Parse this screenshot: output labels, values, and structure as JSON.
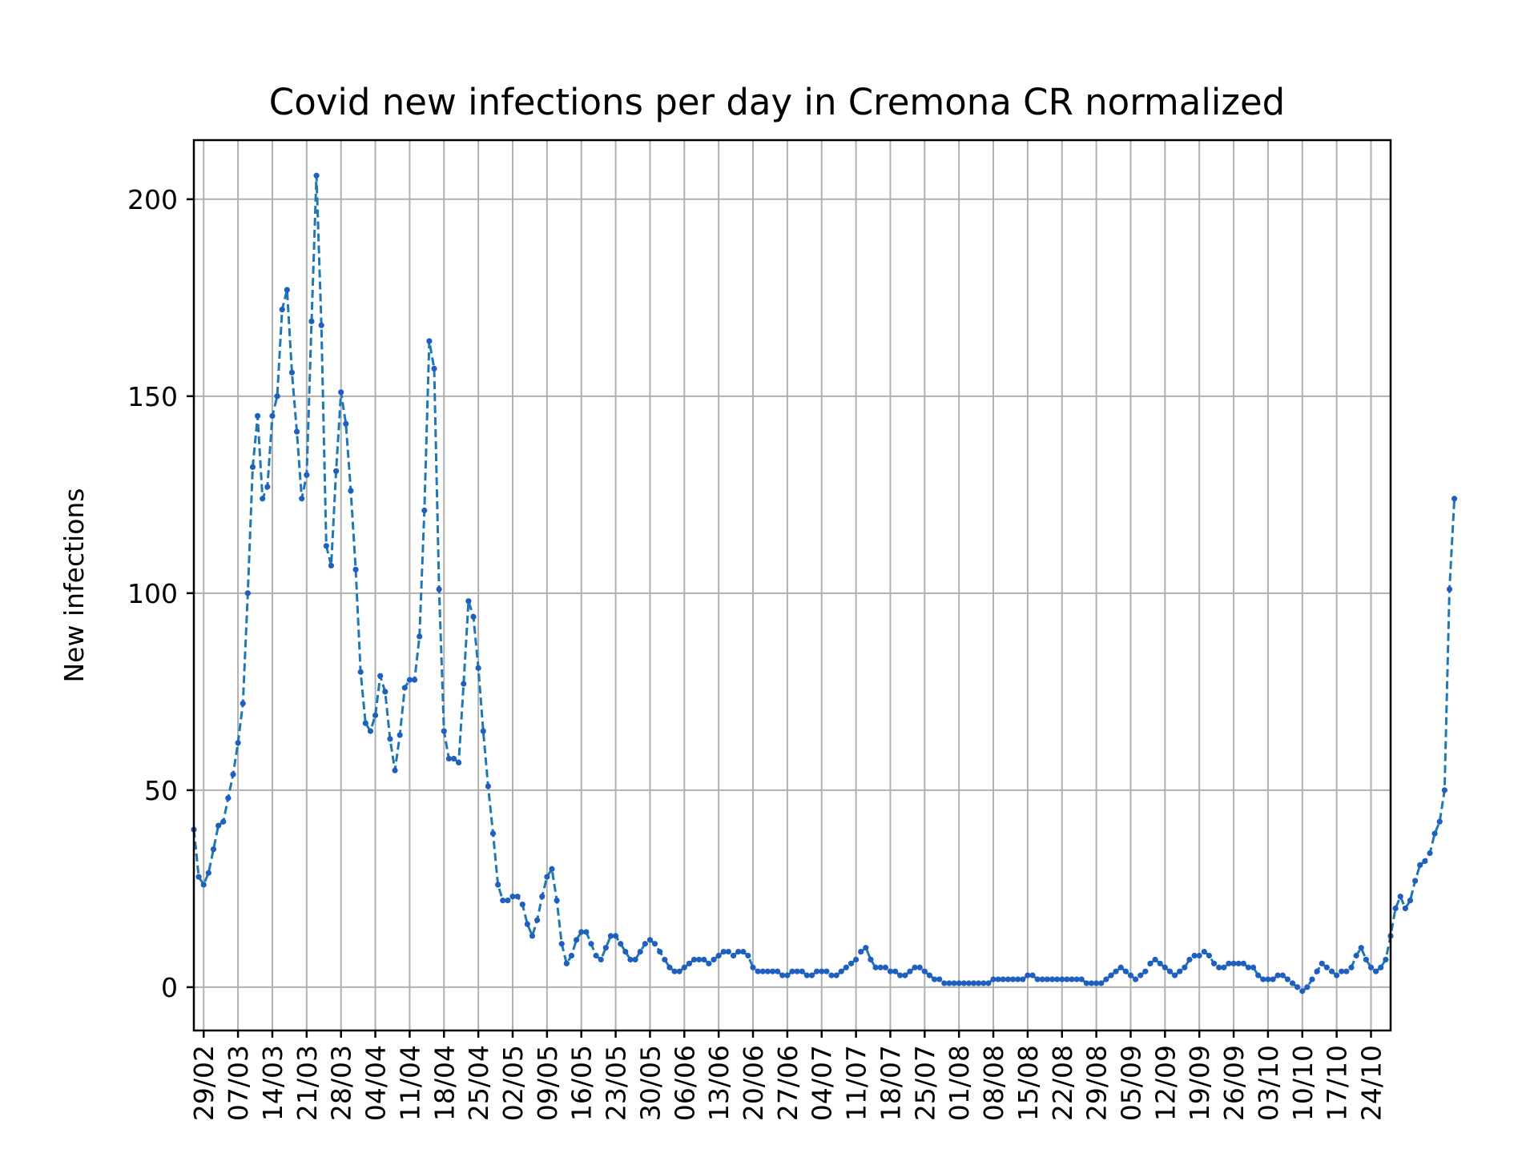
{
  "chart_data": {
    "type": "line",
    "title": "Covid new infections per day in Cremona CR normalized",
    "xlabel": "",
    "ylabel": "New infections",
    "ylim": [
      -11,
      215
    ],
    "x_domain": [
      "2020-02-27",
      "2020-10-28"
    ],
    "y_ticks": [
      0,
      50,
      100,
      150,
      200
    ],
    "x_ticks": [
      "29/02",
      "07/03",
      "14/03",
      "21/03",
      "28/03",
      "04/04",
      "11/04",
      "18/04",
      "25/04",
      "02/05",
      "09/05",
      "16/05",
      "23/05",
      "30/05",
      "06/06",
      "13/06",
      "20/06",
      "27/06",
      "04/07",
      "11/07",
      "18/07",
      "25/07",
      "01/08",
      "08/08",
      "15/08",
      "22/08",
      "29/08",
      "05/09",
      "12/09",
      "19/09",
      "26/09",
      "03/10",
      "10/10",
      "17/10",
      "24/10"
    ],
    "grid": true,
    "line_color": "#1f77b4",
    "marker_color": "#1f5fc0",
    "line_style": "dashed",
    "marker": "dot",
    "series": [
      {
        "start_date": "2020-02-27",
        "values": [
          40,
          28,
          26,
          29,
          35,
          41,
          42,
          48,
          54,
          62,
          72,
          100,
          132,
          145,
          124,
          127,
          145,
          150,
          172,
          177,
          156,
          141,
          124,
          130,
          169,
          206,
          168,
          112,
          107,
          131,
          151,
          143,
          126,
          106,
          80,
          67,
          65,
          69,
          79,
          75,
          63,
          55,
          64,
          76,
          78,
          78,
          89,
          121,
          164,
          157,
          101,
          65,
          58,
          58,
          57,
          77,
          98,
          94,
          81,
          65,
          51,
          39,
          26,
          22,
          22,
          23,
          23,
          21,
          16,
          13,
          17,
          23,
          28,
          30,
          22,
          11,
          6,
          8,
          12,
          14,
          14,
          11,
          8,
          7,
          10,
          13,
          13,
          11,
          9,
          7,
          7,
          9,
          11,
          12,
          11,
          9,
          7,
          5,
          4,
          4,
          5,
          6,
          7,
          7,
          7,
          6,
          7,
          8,
          9,
          9,
          8,
          9,
          9,
          8,
          5,
          4,
          4,
          4,
          4,
          4,
          3,
          3,
          4,
          4,
          4,
          3,
          3,
          4,
          4,
          4,
          3,
          3,
          4,
          5,
          6,
          7,
          9,
          10,
          7,
          5,
          5,
          5,
          4,
          4,
          3,
          3,
          4,
          5,
          5,
          4,
          3,
          2,
          2,
          1,
          1,
          1,
          1,
          1,
          1,
          1,
          1,
          1,
          1,
          2,
          2,
          2,
          2,
          2,
          2,
          2,
          3,
          3,
          2,
          2,
          2,
          2,
          2,
          2,
          2,
          2,
          2,
          2,
          1,
          1,
          1,
          1,
          2,
          3,
          4,
          5,
          4,
          3,
          2,
          3,
          4,
          6,
          7,
          6,
          5,
          4,
          3,
          4,
          5,
          7,
          8,
          8,
          9,
          8,
          6,
          5,
          5,
          6,
          6,
          6,
          6,
          5,
          5,
          3,
          2,
          2,
          2,
          3,
          3,
          2,
          1,
          0,
          -1,
          0,
          2,
          4,
          6,
          5,
          4,
          3,
          4,
          4,
          5,
          8,
          10,
          7,
          5,
          4,
          5,
          7,
          13,
          20,
          23,
          20,
          22,
          27,
          31,
          32,
          34,
          39,
          42,
          50,
          101,
          124
        ]
      }
    ]
  }
}
